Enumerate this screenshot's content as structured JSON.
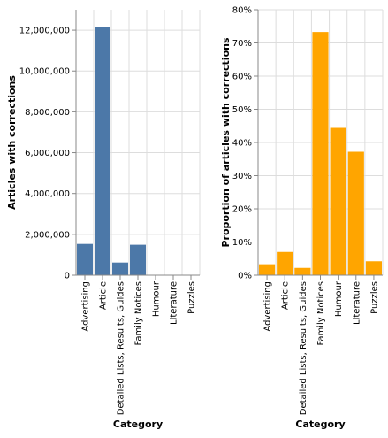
{
  "chart_data": [
    {
      "type": "bar",
      "categories": [
        "Advertising",
        "Article",
        "Detailed Lists, Results, Guides",
        "Family Notices",
        "Humour",
        "Literature",
        "Puzzles"
      ],
      "values": [
        1530000,
        12150000,
        620000,
        1490000,
        20000,
        15000,
        8000
      ],
      "xlabel": "Category",
      "ylabel": "Articles with corrections",
      "ylim": [
        0,
        13000000
      ],
      "yticks": [
        0,
        2000000,
        4000000,
        6000000,
        8000000,
        10000000,
        12000000
      ],
      "ytick_labels": [
        "0",
        "2,000,000",
        "4,000,000",
        "6,000,000",
        "8,000,000",
        "10,000,000",
        "12,000,000"
      ],
      "color": "#4c78a8",
      "grid": true
    },
    {
      "type": "bar",
      "categories": [
        "Advertising",
        "Article",
        "Detailed Lists, Results, Guides",
        "Family Notices",
        "Humour",
        "Literature",
        "Puzzles"
      ],
      "values": [
        0.033,
        0.07,
        0.022,
        0.733,
        0.444,
        0.372,
        0.042
      ],
      "xlabel": "Category",
      "ylabel": "Proportion of articles with corrections",
      "ylim": [
        0,
        0.8
      ],
      "yticks": [
        0,
        0.1,
        0.2,
        0.3,
        0.4,
        0.5,
        0.6,
        0.7,
        0.8
      ],
      "ytick_labels": [
        "0%",
        "10%",
        "20%",
        "30%",
        "40%",
        "50%",
        "60%",
        "70%",
        "80%"
      ],
      "color": "#ffa500",
      "grid": true
    }
  ]
}
